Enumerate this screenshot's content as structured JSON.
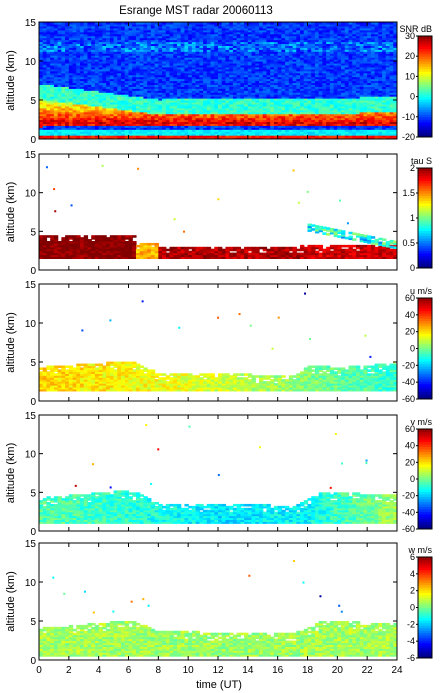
{
  "title": "Esrange MST radar 20060113",
  "x_axis": {
    "label": "time (UT)",
    "range": [
      0,
      24
    ],
    "ticks": [
      "0",
      "2",
      "4",
      "6",
      "8",
      "10",
      "12",
      "14",
      "16",
      "18",
      "20",
      "22",
      "24"
    ]
  },
  "y_axis": {
    "label": "altitude (km)",
    "range": [
      0,
      15
    ],
    "ticks": [
      "0",
      "5",
      "10",
      "15"
    ]
  },
  "chart_data": [
    {
      "type": "heatmap",
      "quantity": "SNR",
      "colorbar_label": "SNR dB",
      "colorbar_range": [
        -20,
        30
      ],
      "colorbar_ticks": [
        "30",
        "20",
        "10",
        "0",
        "-10",
        "-20"
      ],
      "background": "noise-filled",
      "layer": {
        "base_start_km": 1.5,
        "base_end_km": 1.6,
        "top_start_km": 5.0,
        "top_mid_km": 3.0,
        "top_end_km": 3.3,
        "peak_alt_km": 2.0,
        "peak_value": 25,
        "elevated_value": 5
      },
      "ground_clutter_km": 0.5
    },
    {
      "type": "heatmap",
      "quantity": "tau",
      "colorbar_label": "tau S",
      "colorbar_range": [
        0,
        2
      ],
      "colorbar_ticks": [
        "2",
        "1.5",
        "1",
        "0.5",
        "0"
      ],
      "base_km": 1.5,
      "segments": [
        {
          "t_start": 0,
          "t_end": 6.5,
          "top_km": 4.5,
          "value": 2.0
        },
        {
          "t_start": 6.5,
          "t_end": 8,
          "top_km": 3.5,
          "value": 1.4
        },
        {
          "t_start": 8,
          "t_end": 17.5,
          "top_km": 3.0,
          "value": 1.9
        },
        {
          "t_start": 17.5,
          "t_end": 24,
          "top_km": 3.2,
          "value": 1.85
        }
      ],
      "sloping_layer": {
        "t_start": 18.0,
        "t_end": 24.0,
        "alt_start_km": 5.5,
        "alt_end_km": 3.2,
        "value": 0.8
      }
    },
    {
      "type": "heatmap",
      "quantity": "u",
      "colorbar_label": "u m/s",
      "colorbar_range": [
        -60,
        60
      ],
      "colorbar_ticks": [
        "60",
        "40",
        "20",
        "0",
        "-20",
        "-40",
        "-60"
      ],
      "base_km": 1.3,
      "top_km": [
        [
          0,
          4.3
        ],
        [
          6,
          5.0
        ],
        [
          8,
          3.5
        ],
        [
          17,
          3.2
        ],
        [
          18,
          4.5
        ],
        [
          20,
          4.2
        ],
        [
          24,
          4.8
        ]
      ],
      "values": [
        [
          0,
          20
        ],
        [
          6,
          15
        ],
        [
          12,
          10
        ],
        [
          18,
          0
        ],
        [
          24,
          -10
        ]
      ]
    },
    {
      "type": "heatmap",
      "quantity": "v",
      "colorbar_label": "v m/s",
      "colorbar_range": [
        -60,
        60
      ],
      "colorbar_ticks": [
        "60",
        "40",
        "20",
        "0",
        "-20",
        "-40",
        "-60"
      ],
      "base_km": 1.0,
      "top_km": [
        [
          0,
          4.2
        ],
        [
          6,
          5.2
        ],
        [
          8,
          3.5
        ],
        [
          17,
          3.2
        ],
        [
          19,
          5.0
        ],
        [
          24,
          4.5
        ]
      ],
      "values": [
        [
          0,
          -5
        ],
        [
          6,
          -10
        ],
        [
          12,
          -18
        ],
        [
          18,
          -15
        ],
        [
          24,
          5
        ]
      ]
    },
    {
      "type": "heatmap",
      "quantity": "w",
      "colorbar_label": "w m/s",
      "colorbar_range": [
        -6,
        6
      ],
      "colorbar_ticks": [
        "6",
        "4",
        "2",
        "0",
        "-2",
        "-4",
        "-6"
      ],
      "base_km": 0.5,
      "top_km": [
        [
          0,
          4.0
        ],
        [
          6,
          5.0
        ],
        [
          8,
          3.6
        ],
        [
          17,
          3.3
        ],
        [
          19,
          5.0
        ],
        [
          24,
          4.5
        ]
      ],
      "values": [
        [
          0,
          0.5
        ],
        [
          12,
          0.3
        ],
        [
          24,
          0.5
        ]
      ]
    }
  ]
}
